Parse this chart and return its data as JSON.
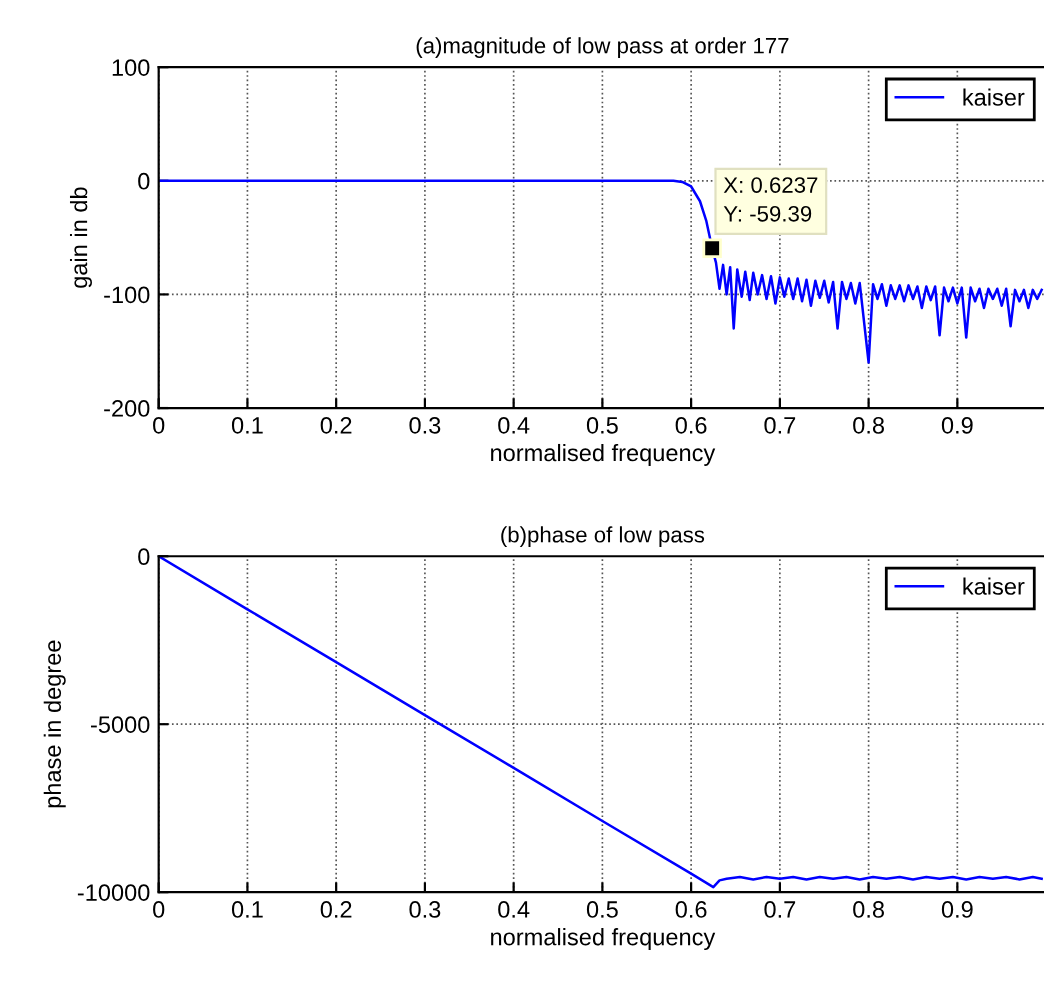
{
  "chart_data": [
    {
      "type": "line",
      "title": "(a)magnitude of low pass at order 177",
      "xlabel": "normalised frequency",
      "ylabel": "gain in db",
      "xlim": [
        0,
        1
      ],
      "xticks": [
        0,
        0.1,
        0.2,
        0.3,
        0.4,
        0.5,
        0.6,
        0.7,
        0.8,
        0.9
      ],
      "ylim": [
        -200,
        100
      ],
      "yticks": [
        -200,
        -100,
        0,
        100
      ],
      "grid": true,
      "legend": "top right",
      "marker": "none",
      "line_style": "solid",
      "annotations": [
        {
          "text": "X: 0.6237\nY: -59.39",
          "x": 0.6237,
          "y": -59.39
        }
      ],
      "series": [
        {
          "name": "kaiser",
          "color": "#0000ff",
          "x": [
            0,
            0.1,
            0.2,
            0.3,
            0.4,
            0.5,
            0.58,
            0.59,
            0.6,
            0.61,
            0.617,
            0.6237,
            0.628,
            0.632,
            0.636,
            0.64,
            0.644,
            0.648,
            0.652,
            0.657,
            0.661,
            0.666,
            0.67,
            0.675,
            0.68,
            0.685,
            0.69,
            0.695,
            0.7,
            0.705,
            0.71,
            0.715,
            0.72,
            0.725,
            0.73,
            0.735,
            0.74,
            0.745,
            0.75,
            0.755,
            0.76,
            0.765,
            0.77,
            0.775,
            0.78,
            0.785,
            0.79,
            0.8,
            0.805,
            0.81,
            0.815,
            0.82,
            0.825,
            0.83,
            0.835,
            0.84,
            0.845,
            0.85,
            0.855,
            0.86,
            0.865,
            0.87,
            0.875,
            0.88,
            0.885,
            0.89,
            0.895,
            0.9,
            0.905,
            0.91,
            0.915,
            0.92,
            0.925,
            0.93,
            0.935,
            0.94,
            0.945,
            0.95,
            0.955,
            0.96,
            0.965,
            0.97,
            0.975,
            0.98,
            0.985,
            0.99,
            0.995
          ],
          "values": [
            0,
            0,
            0,
            0,
            0,
            0,
            0,
            -1,
            -5,
            -18,
            -35,
            -59.39,
            -72,
            -95,
            -74,
            -100,
            -76,
            -130,
            -78,
            -102,
            -80,
            -105,
            -81,
            -100,
            -83,
            -104,
            -84,
            -108,
            -85,
            -102,
            -86,
            -104,
            -86,
            -106,
            -87,
            -110,
            -88,
            -103,
            -88,
            -107,
            -89,
            -130,
            -89,
            -104,
            -90,
            -108,
            -90,
            -160,
            -91,
            -104,
            -91,
            -110,
            -92,
            -104,
            -92,
            -106,
            -92,
            -104,
            -93,
            -112,
            -93,
            -105,
            -93,
            -136,
            -94,
            -106,
            -94,
            -108,
            -94,
            -138,
            -94,
            -106,
            -95,
            -112,
            -95,
            -104,
            -95,
            -110,
            -95,
            -128,
            -96,
            -106,
            -96,
            -112,
            -96,
            -104,
            -96
          ]
        }
      ]
    },
    {
      "type": "line",
      "title": "(b)phase of low pass",
      "xlabel": "normalised frequency",
      "ylabel": "phase in degree",
      "xlim": [
        0,
        1
      ],
      "xticks": [
        0,
        0.1,
        0.2,
        0.3,
        0.4,
        0.5,
        0.6,
        0.7,
        0.8,
        0.9
      ],
      "ylim": [
        -10000,
        0
      ],
      "yticks": [
        -10000,
        -5000,
        0
      ],
      "grid": true,
      "legend": "top right",
      "marker": "none",
      "line_style": "solid",
      "series": [
        {
          "name": "kaiser",
          "color": "#0000ff",
          "x": [
            0,
            0.1,
            0.2,
            0.3,
            0.4,
            0.5,
            0.6,
            0.625,
            0.632,
            0.64,
            0.655,
            0.67,
            0.685,
            0.7,
            0.715,
            0.73,
            0.745,
            0.76,
            0.775,
            0.79,
            0.805,
            0.82,
            0.835,
            0.85,
            0.865,
            0.88,
            0.895,
            0.91,
            0.925,
            0.94,
            0.955,
            0.97,
            0.985,
            0.995
          ],
          "values": [
            0,
            -1580,
            -3150,
            -4730,
            -6300,
            -7880,
            -9450,
            -9850,
            -9650,
            -9600,
            -9550,
            -9620,
            -9550,
            -9600,
            -9550,
            -9620,
            -9550,
            -9600,
            -9550,
            -9620,
            -9550,
            -9600,
            -9550,
            -9620,
            -9550,
            -9600,
            -9550,
            -9620,
            -9550,
            -9600,
            -9550,
            -9620,
            -9550,
            -9600
          ]
        }
      ]
    }
  ]
}
